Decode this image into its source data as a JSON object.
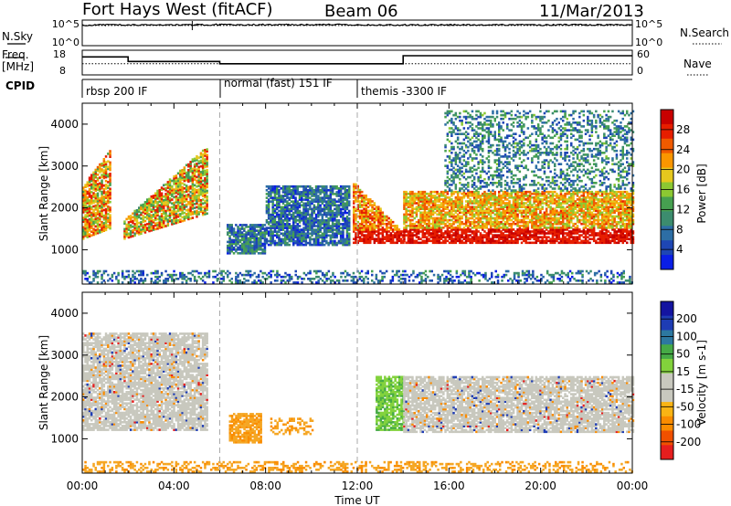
{
  "header": {
    "station": "Fort Hays West (fitACF)",
    "beam": "Beam 06",
    "date": "11/Mar/2013"
  },
  "left_labels": {
    "nsky": "N.Sky",
    "freq": "Freq.",
    "freq_unit": "[MHz]",
    "cpid": "CPID"
  },
  "right_labels": {
    "nsearch": "N.Search",
    "nave": "Nave"
  },
  "noise_panel": {
    "yticks_left": [
      "10^5",
      "10^0"
    ],
    "yticks_right": [
      "10^5",
      "10^0"
    ]
  },
  "freq_panel": {
    "yticks_left": [
      "18",
      "8"
    ],
    "yticks_right": [
      "60",
      "0"
    ]
  },
  "cpid_panel": {
    "segments": [
      {
        "label": "rbsp 200 IF",
        "start_hour": 0
      },
      {
        "label": "normal (fast) 151 IF",
        "start_hour": 6
      },
      {
        "label": "themis -3300 IF",
        "start_hour": 12
      }
    ]
  },
  "colors": {
    "power_scale": [
      "#0a1ee6",
      "#1e46b4",
      "#2d6ea5",
      "#3c8c6e",
      "#46a050",
      "#8cc832",
      "#e6c81e",
      "#fa9600",
      "#f05a00",
      "#e61e00",
      "#c80000"
    ],
    "velocity_scale": [
      "#e61e1e",
      "#f05000",
      "#fa8c00",
      "#fab414",
      "#c8c8be",
      "#c8c8be",
      "#82d23c",
      "#46aa46",
      "#2d78a0",
      "#1e3cb4",
      "#1414a0"
    ],
    "velocity_fill": "#f5a623",
    "ground_scatter": "#c8c8be"
  },
  "chart_data": [
    {
      "type": "line",
      "title": "Fort Hays West (fitACF)",
      "panel": "noise",
      "ylabel": "N.Sky",
      "y_scale": "log",
      "ylim": [
        1,
        100000
      ],
      "xlim_hours": [
        0,
        24
      ],
      "series": [
        {
          "name": "N.Sky",
          "x_hours": [
            0,
            0.4,
            1,
            3,
            5,
            6,
            7,
            9,
            11,
            12,
            14,
            16,
            18,
            20,
            22,
            24
          ],
          "values": [
            10000,
            10000,
            12000,
            11000,
            12000,
            13000,
            12500,
            12000,
            13000,
            12000,
            11000,
            11500,
            12000,
            11000,
            12000,
            12000
          ]
        },
        {
          "name": "N.Search",
          "x_hours": [
            0,
            4,
            8,
            12,
            16,
            20,
            24
          ],
          "values": [
            9000,
            9000,
            9000,
            9000,
            9000,
            9000,
            9000
          ]
        }
      ]
    },
    {
      "type": "line",
      "panel": "frequency",
      "ylabel": "Freq. [MHz]",
      "ylim": [
        8,
        18
      ],
      "xlim_hours": [
        0,
        24
      ],
      "series": [
        {
          "name": "Freq.",
          "x_hours": [
            0,
            2,
            2,
            6,
            6,
            14,
            14,
            24
          ],
          "values": [
            15.5,
            15.5,
            13.5,
            13.5,
            12.5,
            12.5,
            16,
            16
          ]
        },
        {
          "name": "Nave",
          "x_hours": [
            0,
            24
          ],
          "values": [
            12.5,
            12.5
          ]
        }
      ]
    },
    {
      "type": "heatmap",
      "panel": "power",
      "ylabel": "Slant Range [km]",
      "colorbar_label": "Power [dB]",
      "colorbar_ticks": [
        4,
        8,
        12,
        16,
        20,
        24,
        28
      ],
      "colorbar_range": [
        0,
        30
      ],
      "ylim_km": [
        180,
        4500
      ],
      "yticks": [
        1000,
        2000,
        3000,
        4000
      ],
      "xlim_hours": [
        0,
        24
      ],
      "xticks": [
        "00:00",
        "04:00",
        "08:00",
        "12:00",
        "16:00",
        "20:00",
        "00:00"
      ],
      "vlines_hours": [
        6,
        12
      ],
      "regions": [
        {
          "t0": 0.0,
          "t1": 1.2,
          "r0": 1250,
          "r1": 3300,
          "level": 18
        },
        {
          "t0": 1.8,
          "t1": 5.4,
          "r0": 1250,
          "r1": 3450,
          "level": 16
        },
        {
          "t0": 6.3,
          "t1": 8.0,
          "r0": 900,
          "r1": 1600,
          "level": 7
        },
        {
          "t0": 8.0,
          "t1": 11.6,
          "r0": 1100,
          "r1": 2500,
          "level": 6
        },
        {
          "t0": 11.8,
          "t1": 14.0,
          "r0": 1150,
          "r1": 2600,
          "level": 22
        },
        {
          "t0": 14.0,
          "t1": 24.0,
          "r0": 1150,
          "r1": 2400,
          "level": 20
        },
        {
          "t0": 15.8,
          "t1": 24.0,
          "r0": 2400,
          "r1": 4300,
          "level": 8
        },
        {
          "t0": 0.0,
          "t1": 24.0,
          "r0": 200,
          "r1": 500,
          "level": 6
        }
      ]
    },
    {
      "type": "heatmap",
      "panel": "velocity",
      "ylabel": "Slant Range [km]",
      "colorbar_label": "Velocity [m s^-1]",
      "colorbar_ticks": [
        200,
        100,
        50,
        15,
        -15,
        -50,
        -100,
        -200
      ],
      "colorbar_range": [
        -250,
        250
      ],
      "ylim_km": [
        180,
        4500
      ],
      "yticks": [
        1000,
        2000,
        3000,
        4000
      ],
      "xlim_hours": [
        0,
        24
      ],
      "xticks": [
        "00:00",
        "04:00",
        "08:00",
        "12:00",
        "16:00",
        "20:00",
        "00:00"
      ],
      "xlabel": "Time UT",
      "vlines_hours": [
        6,
        12
      ],
      "regions": [
        {
          "t0": 0.0,
          "t1": 5.4,
          "r0": 1200,
          "r1": 3500,
          "velocity": 0,
          "kind": "ground"
        },
        {
          "t0": 6.4,
          "t1": 7.8,
          "r0": 900,
          "r1": 1600,
          "velocity": -60,
          "kind": "iono"
        },
        {
          "t0": 8.2,
          "t1": 10.0,
          "r0": 1100,
          "r1": 1500,
          "velocity": -60,
          "kind": "iono"
        },
        {
          "t0": 12.8,
          "t1": 14.0,
          "r0": 1200,
          "r1": 2500,
          "velocity": 40,
          "kind": "iono"
        },
        {
          "t0": 14.0,
          "t1": 24.0,
          "r0": 1150,
          "r1": 2500,
          "velocity": 0,
          "kind": "ground"
        },
        {
          "t0": 0.0,
          "t1": 24.0,
          "r0": 200,
          "r1": 450,
          "velocity": -60,
          "kind": "iono"
        }
      ]
    }
  ],
  "x_axis": {
    "label": "Time UT",
    "ticks": [
      "00:00",
      "04:00",
      "08:00",
      "12:00",
      "16:00",
      "20:00",
      "00:00"
    ]
  },
  "y_axis_power": {
    "label": "Slant Range [km]",
    "ticks": [
      "1000",
      "2000",
      "3000",
      "4000"
    ]
  },
  "y_axis_velocity": {
    "label": "Slant Range [km]",
    "ticks": [
      "1000",
      "2000",
      "3000",
      "4000"
    ]
  },
  "colorbar_power": {
    "label": "Power [dB]",
    "ticks": [
      "28",
      "24",
      "20",
      "16",
      "12",
      "8",
      "4"
    ]
  },
  "colorbar_velocity": {
    "label": "Velocity [m s-1]",
    "ticks": [
      "200",
      "100",
      "50",
      "15",
      "-15",
      "-50",
      "-100",
      "-200"
    ]
  }
}
